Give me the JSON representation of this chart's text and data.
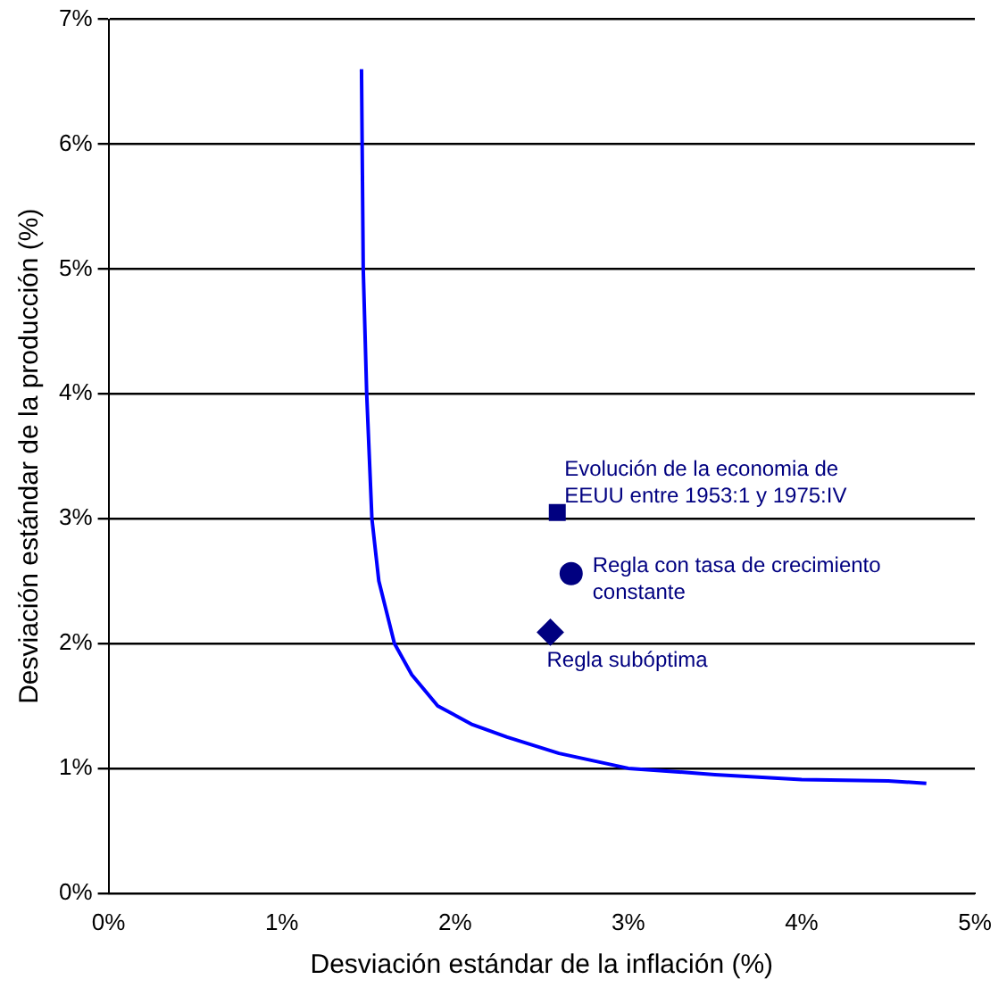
{
  "chart_data": {
    "type": "line",
    "xlabel": "Desviación estándar de la inflación (%)",
    "ylabel": "Desviación estándar de la producción (%)",
    "xlim": [
      0,
      5
    ],
    "xticks": [
      {
        "value": 0,
        "label": "0%"
      },
      {
        "value": 1,
        "label": "1%"
      },
      {
        "value": 2,
        "label": "2%"
      },
      {
        "value": 3,
        "label": "3%"
      },
      {
        "value": 4,
        "label": "4%"
      },
      {
        "value": 5,
        "label": "5%"
      }
    ],
    "ylim": [
      0,
      7
    ],
    "yticks": [
      {
        "value": 0,
        "label": "0%"
      },
      {
        "value": 1,
        "label": "1%"
      },
      {
        "value": 2,
        "label": "2%"
      },
      {
        "value": 3,
        "label": "3%"
      },
      {
        "value": 4,
        "label": "4%"
      },
      {
        "value": 5,
        "label": "5%"
      },
      {
        "value": 6,
        "label": "6%"
      },
      {
        "value": 7,
        "label": "7%"
      }
    ],
    "grid": "y",
    "legend": false,
    "series": [
      {
        "type": "line",
        "color": "#0000ff",
        "marker": "none",
        "x": [
          1.46,
          1.47,
          1.49,
          1.52,
          1.56,
          1.65,
          1.75,
          1.9,
          2.1,
          2.3,
          2.6,
          3.0,
          3.5,
          4.0,
          4.5,
          4.72
        ],
        "values": [
          6.6,
          5.0,
          4.0,
          3.0,
          2.5,
          2.0,
          1.75,
          1.5,
          1.35,
          1.25,
          1.12,
          1.0,
          0.95,
          0.91,
          0.9,
          0.88
        ]
      },
      {
        "type": "scatter",
        "name": "Evolución de la economia de EEUU entre 1953:1 y 1975:IV",
        "color": "#000080",
        "marker": "square",
        "x": [
          2.59
        ],
        "values": [
          3.05
        ]
      },
      {
        "type": "scatter",
        "name": "Regla con tasa de crecimiento constante",
        "color": "#000080",
        "marker": "circle",
        "x": [
          2.67
        ],
        "values": [
          2.56
        ]
      },
      {
        "type": "scatter",
        "name": "Regla subóptima",
        "color": "#000080",
        "marker": "diamond",
        "x": [
          2.55
        ],
        "values": [
          2.09
        ]
      }
    ]
  }
}
